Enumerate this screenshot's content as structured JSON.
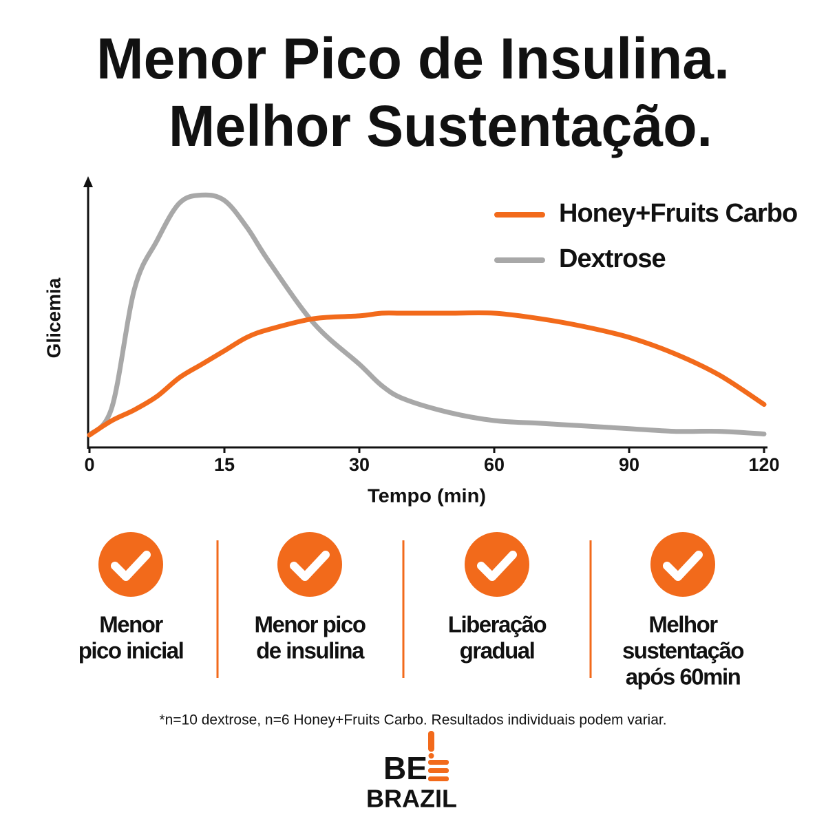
{
  "header": {
    "title": [
      "Menor Pico de Insulina.",
      "Melhor Sustentação."
    ]
  },
  "chart_data": {
    "type": "line",
    "x_label": "Tempo (min)",
    "y_label": "Glicemia",
    "x": [
      0,
      2.5,
      5,
      7.5,
      10,
      12.5,
      15,
      17.5,
      20,
      25,
      30,
      35,
      40,
      50,
      60,
      70,
      80,
      90,
      100,
      110,
      120
    ],
    "xticks": [
      0,
      15,
      30,
      60,
      90,
      120
    ],
    "xlim": [
      0,
      120
    ],
    "ylim": [
      0,
      100
    ],
    "series": [
      {
        "name": "Honey+Fruits Carbo",
        "color": "#f26a1b",
        "values": [
          4.6,
          10,
          14,
          19,
          26,
          31,
          36,
          41,
          44,
          48,
          49,
          50,
          50,
          50,
          50,
          48,
          45,
          41,
          35,
          27,
          16
        ]
      },
      {
        "name": "Dextrose",
        "color": "#a8a8a8",
        "values": [
          4.6,
          15,
          59,
          77,
          91,
          94,
          92,
          82,
          69,
          46,
          31,
          23,
          18,
          13,
          10,
          9,
          8,
          7,
          6,
          6,
          5
        ]
      }
    ]
  },
  "features": [
    {
      "lines": [
        "Menor",
        "pico inicial"
      ]
    },
    {
      "lines": [
        "Menor pico",
        "de insulina"
      ]
    },
    {
      "lines": [
        "Liberação",
        "gradual"
      ]
    },
    {
      "lines": [
        "Melhor",
        "sustentação",
        "após 60min"
      ]
    }
  ],
  "footnote": "*n=10 dextrose, n=6 Honey+Fruits Carbo. Resultados individuais podem variar.",
  "logo": {
    "top": "BE",
    "bottom": "BRAZIL"
  }
}
